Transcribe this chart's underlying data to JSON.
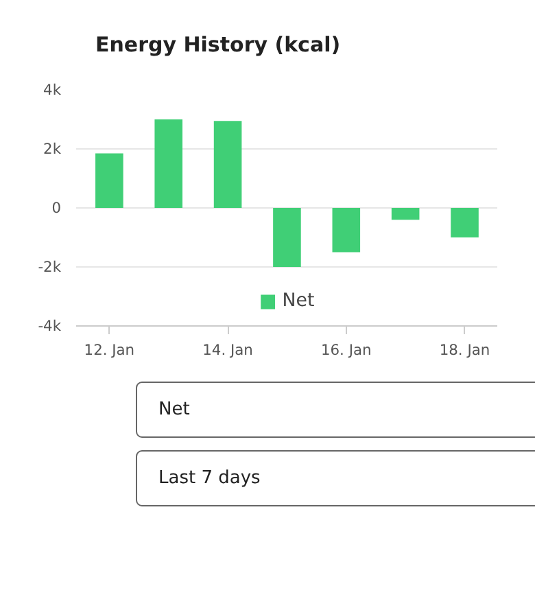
{
  "chart_data": {
    "type": "bar",
    "title": "Energy History (kcal)",
    "categories": [
      "12. Jan",
      null,
      "14. Jan",
      null,
      "16. Jan",
      null,
      "18. Jan"
    ],
    "series": [
      {
        "name": "Net",
        "color": "#40cf76",
        "values": [
          1850,
          3000,
          2950,
          -2000,
          -1500,
          -400,
          -1000
        ]
      }
    ],
    "ylim": [
      -4000,
      4000
    ],
    "yticks": [
      {
        "value": -4000,
        "label": "-4k"
      },
      {
        "value": -2000,
        "label": "-2k"
      },
      0,
      {
        "value": 2000,
        "label": "2k"
      },
      {
        "value": 4000,
        "label": "4k"
      }
    ],
    "grid": "y",
    "legend": "bottom",
    "annotations": [
      "Net",
      "Last 7 days"
    ]
  }
}
